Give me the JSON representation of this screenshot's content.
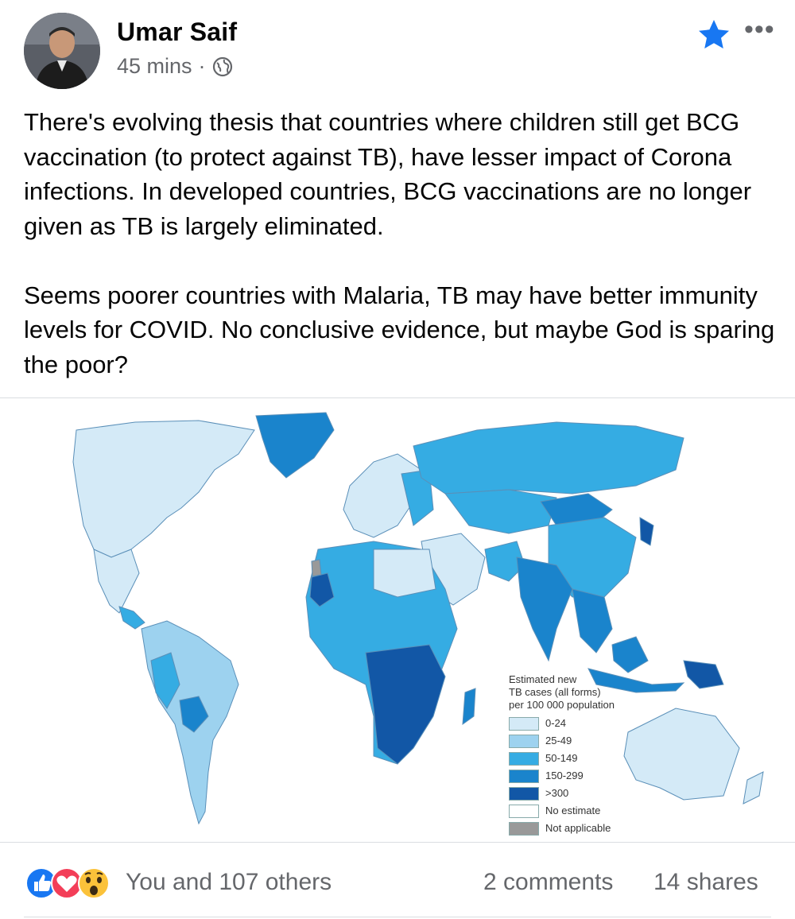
{
  "post": {
    "author": "Umar Saif",
    "time": "45 mins",
    "separator": "·",
    "visibility_icon": "globe-icon",
    "paragraphs": [
      "There's evolving thesis that countries where children still get BCG vaccination (to protect against TB), have lesser impact of Corona infections. In developed countries, BCG vaccinations are no longer given as TB is largely eliminated.",
      "Seems poorer countries with Malaria, TB may have better immunity levels for COVID. No conclusive evidence, but maybe God is sparing the poor?"
    ]
  },
  "map": {
    "legend_title_lines": [
      "Estimated new",
      "TB cases (all forms)",
      "per 100 000 population"
    ],
    "legend": [
      {
        "label": "0-24",
        "color": "#d4eaf7"
      },
      {
        "label": "25-49",
        "color": "#9dd2ef"
      },
      {
        "label": "50-149",
        "color": "#35ace3"
      },
      {
        "label": "150-299",
        "color": "#1a84cc"
      },
      {
        "label": ">300",
        "color": "#1257a6"
      },
      {
        "label": "No estimate",
        "color": "#ffffff"
      },
      {
        "label": "Not applicable",
        "color": "#999999"
      }
    ]
  },
  "footer": {
    "reactions_text": "You and 107 others",
    "comments_text": "2 comments",
    "shares_text": "14 shares",
    "reaction_icons": [
      "like-icon",
      "love-icon",
      "wow-icon"
    ]
  },
  "colors": {
    "accent": "#1877f2",
    "secondary_text": "#65676b"
  }
}
